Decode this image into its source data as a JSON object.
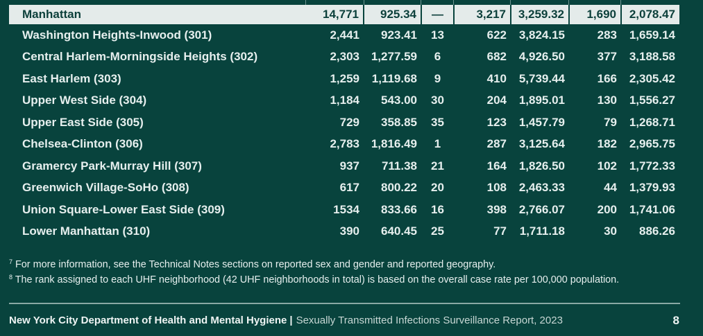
{
  "borough": {
    "name": "Manhattan",
    "values": [
      "14,771",
      "925.34",
      "—",
      "3,217",
      "3,259.32",
      "1,690",
      "2,078.47"
    ]
  },
  "neighborhoods": [
    {
      "name": "Washington Heights-Inwood (301)",
      "values": [
        "2,441",
        "923.41",
        "13",
        "622",
        "3,824.15",
        "283",
        "1,659.14"
      ]
    },
    {
      "name": "Central Harlem-Morningside Heights (302)",
      "values": [
        "2,303",
        "1,277.59",
        "6",
        "682",
        "4,926.50",
        "377",
        "3,188.58"
      ]
    },
    {
      "name": "East Harlem (303)",
      "values": [
        "1,259",
        "1,119.68",
        "9",
        "410",
        "5,739.44",
        "166",
        "2,305.42"
      ]
    },
    {
      "name": "Upper West Side (304)",
      "values": [
        "1,184",
        "543.00",
        "30",
        "204",
        "1,895.01",
        "130",
        "1,556.27"
      ]
    },
    {
      "name": "Upper East Side (305)",
      "values": [
        "729",
        "358.85",
        "35",
        "123",
        "1,457.79",
        "79",
        "1,268.71"
      ]
    },
    {
      "name": "Chelsea-Clinton (306)",
      "values": [
        "2,783",
        "1,816.49",
        "1",
        "287",
        "3,125.64",
        "182",
        "2,965.75"
      ]
    },
    {
      "name": "Gramercy Park-Murray Hill (307)",
      "values": [
        "937",
        "711.38",
        "21",
        "164",
        "1,826.50",
        "102",
        "1,772.33"
      ]
    },
    {
      "name": "Greenwich Village-SoHo (308)",
      "values": [
        "617",
        "800.22",
        "20",
        "108",
        "2,463.33",
        "44",
        "1,379.93"
      ]
    },
    {
      "name": "Union Square-Lower East Side (309)",
      "values": [
        "1534",
        "833.66",
        "16",
        "398",
        "2,766.07",
        "200",
        "1,741.06"
      ]
    },
    {
      "name": "Lower Manhattan (310)",
      "values": [
        "390",
        "640.45",
        "25",
        "77",
        "1,711.18",
        "30",
        "886.26"
      ]
    }
  ],
  "notes": [
    {
      "marker": "7",
      "text": "For more information, see the Technical Notes sections on reported sex and gender and reported geography."
    },
    {
      "marker": "8",
      "text": "The rank assigned to each UHF neighborhood (42 UHF neighborhoods in total) is based on the overall case rate per 100,000 population."
    }
  ],
  "footer": {
    "department": "New York City Department of Health and Mental Hygiene",
    "separator": "|",
    "report": "Sexually Transmitted Infections Surveillance Report, 2023",
    "page": "8"
  }
}
